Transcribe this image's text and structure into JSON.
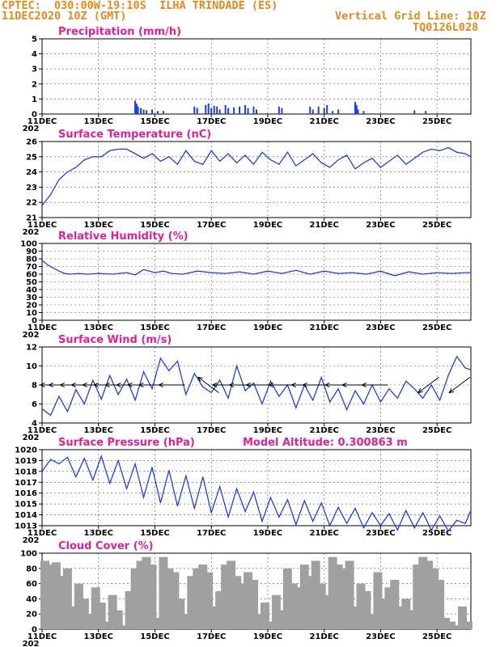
{
  "header": {
    "left_line1": "CPTEC:  030:00W-19:10S  ILHA TRINDADE (ES)",
    "left_line2": "11DEC2020 10Z (GMT)",
    "right_line1": "Vertical Grid Line: 10Z",
    "right_line2": "TQ0126L028"
  },
  "colors": {
    "header": "#e8881c",
    "title": "#e0209a",
    "line": "#1f3fe6",
    "bar": "#1f3fe6",
    "cloud": "#a0a0a0",
    "arrow": "#000000"
  },
  "x_axis": {
    "ticks": [
      "11DEC",
      "13DEC",
      "15DEC",
      "17DEC",
      "19DEC",
      "21DEC",
      "23DEC",
      "25DEC"
    ],
    "tick_positions_days": [
      0,
      2,
      4,
      6,
      8,
      10,
      12,
      14
    ],
    "range_days": [
      0,
      15.2
    ],
    "year_fragment": "202"
  },
  "chart_data": [
    {
      "type": "bar",
      "title": "Precipitation (mm/h)",
      "ylim": [
        0,
        5
      ],
      "yticks": [
        0,
        1,
        2,
        3,
        4,
        5
      ],
      "grid": true,
      "x": [
        3.3,
        3.35,
        3.4,
        3.5,
        3.6,
        3.7,
        3.9,
        4.1,
        4.3,
        5.4,
        5.5,
        5.8,
        5.9,
        6.0,
        6.1,
        6.2,
        6.3,
        6.5,
        6.6,
        6.8,
        7.0,
        7.2,
        7.3,
        7.5,
        7.6,
        8.4,
        8.5,
        9.5,
        9.6,
        9.8,
        10.0,
        10.1,
        10.3,
        10.5,
        11.1,
        11.15,
        11.2,
        11.4,
        13.2,
        13.6
      ],
      "values": [
        0.9,
        0.7,
        0.5,
        0.4,
        0.3,
        0.25,
        0.3,
        0.2,
        0.2,
        0.5,
        0.4,
        0.6,
        0.7,
        0.4,
        0.55,
        0.5,
        0.3,
        0.6,
        0.4,
        0.45,
        0.5,
        0.6,
        0.4,
        0.5,
        0.3,
        0.5,
        0.4,
        0.5,
        0.3,
        0.5,
        0.4,
        0.6,
        0.2,
        0.3,
        0.8,
        0.6,
        0.3,
        0.2,
        0.25,
        0.2
      ]
    },
    {
      "type": "line",
      "title": "Surface Temperature (nC)",
      "ylim": [
        21,
        26
      ],
      "yticks": [
        21,
        22,
        23,
        24,
        25,
        26
      ],
      "grid": true,
      "x": [
        0,
        0.3,
        0.6,
        0.9,
        1.2,
        1.5,
        1.8,
        2.1,
        2.4,
        2.7,
        3.0,
        3.3,
        3.6,
        3.9,
        4.2,
        4.5,
        4.8,
        5.1,
        5.4,
        5.7,
        6.0,
        6.3,
        6.6,
        6.9,
        7.2,
        7.5,
        7.8,
        8.1,
        8.4,
        8.7,
        9.0,
        9.3,
        9.6,
        9.9,
        10.2,
        10.5,
        10.8,
        11.1,
        11.4,
        11.7,
        12.0,
        12.3,
        12.6,
        12.9,
        13.2,
        13.5,
        13.8,
        14.1,
        14.4,
        14.7,
        15.0,
        15.2
      ],
      "values": [
        21.8,
        22.5,
        23.5,
        24.0,
        24.3,
        24.8,
        25.0,
        25.0,
        25.4,
        25.5,
        25.5,
        25.2,
        24.9,
        25.2,
        24.7,
        25.0,
        24.5,
        25.4,
        24.7,
        24.5,
        25.4,
        24.7,
        25.2,
        24.6,
        25.1,
        24.5,
        25.3,
        24.8,
        24.5,
        25.3,
        24.4,
        24.8,
        25.2,
        24.6,
        24.3,
        24.8,
        25.1,
        24.2,
        24.6,
        24.9,
        24.3,
        24.7,
        25.1,
        24.5,
        24.9,
        25.3,
        25.5,
        25.4,
        25.6,
        25.3,
        25.2,
        25.0
      ]
    },
    {
      "type": "line",
      "title": "Relative Humidity (%)",
      "ylim": [
        0,
        100
      ],
      "yticks": [
        0,
        10,
        20,
        30,
        40,
        50,
        60,
        70,
        80,
        90,
        100
      ],
      "grid": true,
      "x": [
        0,
        0.2,
        0.4,
        0.6,
        0.8,
        1.0,
        1.3,
        1.6,
        2.0,
        2.5,
        3.0,
        3.3,
        3.6,
        4.0,
        4.3,
        4.6,
        5.0,
        5.5,
        6.0,
        6.5,
        7.0,
        7.5,
        8.0,
        8.5,
        9.0,
        9.5,
        10.0,
        10.5,
        11.0,
        11.5,
        12.0,
        12.5,
        13.0,
        13.5,
        14.0,
        14.5,
        15.0,
        15.2
      ],
      "values": [
        78,
        72,
        68,
        64,
        61,
        60,
        61,
        60,
        61,
        60,
        62,
        59,
        66,
        62,
        64,
        61,
        60,
        64,
        62,
        61,
        63,
        60,
        64,
        61,
        65,
        60,
        64,
        61,
        62,
        60,
        64,
        58,
        63,
        60,
        62,
        61,
        62,
        62
      ]
    },
    {
      "type": "line",
      "title": "Surface Wind (m/s)",
      "ylim": [
        4,
        12
      ],
      "yticks": [
        4,
        6,
        8,
        10,
        12
      ],
      "grid": true,
      "x": [
        0,
        0.3,
        0.6,
        0.9,
        1.2,
        1.5,
        1.8,
        2.1,
        2.4,
        2.7,
        3.0,
        3.3,
        3.6,
        3.9,
        4.2,
        4.5,
        4.8,
        5.1,
        5.4,
        5.7,
        6.0,
        6.3,
        6.6,
        6.9,
        7.2,
        7.5,
        7.8,
        8.1,
        8.4,
        8.7,
        9.0,
        9.3,
        9.6,
        9.9,
        10.2,
        10.5,
        10.8,
        11.1,
        11.4,
        11.7,
        12.0,
        12.3,
        12.6,
        12.9,
        13.2,
        13.5,
        13.8,
        14.1,
        14.4,
        14.7,
        15.0,
        15.2
      ],
      "values": [
        5.5,
        4.8,
        6.8,
        5.2,
        7.5,
        6.0,
        8.5,
        6.5,
        9.0,
        7.0,
        8.6,
        6.4,
        9.4,
        7.6,
        10.8,
        9.5,
        10.5,
        7.0,
        9.2,
        7.8,
        7.2,
        8.5,
        6.6,
        10.0,
        7.4,
        8.2,
        6.0,
        8.4,
        6.8,
        8.0,
        5.6,
        8.0,
        6.4,
        8.8,
        6.2,
        7.6,
        5.4,
        7.4,
        6.0,
        8.0,
        6.2,
        7.6,
        6.6,
        8.4,
        7.6,
        6.6,
        8.0,
        6.4,
        9.0,
        11.0,
        9.8,
        9.6
      ],
      "arrows_dir": [
        "w",
        "w",
        "w",
        "w",
        "w",
        "w",
        "w",
        "w",
        "w",
        "w",
        "w",
        "nw",
        "w",
        "w",
        "w",
        "w",
        "w",
        "w",
        "w",
        "w",
        "w",
        "sw",
        "sw"
      ],
      "arrows_x": [
        0.4,
        0.7,
        1.1,
        1.5,
        1.9,
        2.3,
        2.7,
        3.1,
        3.5,
        3.9,
        4.6,
        5.9,
        6.5,
        7.1,
        7.7,
        8.5,
        9.3,
        9.7,
        10.5,
        11.1,
        11.8,
        13.7,
        14.8
      ]
    },
    {
      "type": "line",
      "title": "Surface Pressure (hPa)",
      "annotation": "Model Altitude: 0.300863 m",
      "ylim": [
        1013,
        1020
      ],
      "yticks": [
        1013,
        1014,
        1015,
        1016,
        1017,
        1018,
        1019,
        1020
      ],
      "grid": true,
      "x": [
        0,
        0.3,
        0.6,
        0.9,
        1.2,
        1.5,
        1.8,
        2.1,
        2.4,
        2.7,
        3.0,
        3.3,
        3.6,
        3.9,
        4.2,
        4.5,
        4.8,
        5.1,
        5.4,
        5.7,
        6.0,
        6.3,
        6.6,
        6.9,
        7.2,
        7.5,
        7.8,
        8.1,
        8.4,
        8.7,
        9.0,
        9.3,
        9.6,
        9.9,
        10.2,
        10.5,
        10.8,
        11.1,
        11.4,
        11.7,
        12.0,
        12.3,
        12.6,
        12.9,
        13.2,
        13.5,
        13.8,
        14.1,
        14.4,
        14.7,
        15.0,
        15.2
      ],
      "values": [
        1018.0,
        1019.1,
        1018.7,
        1019.3,
        1017.5,
        1019.2,
        1017.2,
        1019.4,
        1016.9,
        1019.0,
        1016.4,
        1018.7,
        1015.6,
        1018.4,
        1015.1,
        1018.1,
        1014.8,
        1017.6,
        1014.6,
        1017.5,
        1014.2,
        1016.6,
        1013.8,
        1016.4,
        1014.3,
        1016.1,
        1013.4,
        1015.6,
        1013.8,
        1015.4,
        1013.1,
        1015.3,
        1013.4,
        1015.1,
        1013.0,
        1014.7,
        1013.2,
        1014.6,
        1012.8,
        1014.2,
        1013.0,
        1014.1,
        1012.6,
        1014.4,
        1012.8,
        1014.2,
        1012.6,
        1013.9,
        1012.5,
        1013.5,
        1013.2,
        1014.4
      ]
    },
    {
      "type": "bar",
      "title": "Cloud Cover (%)",
      "ylim": [
        0,
        100
      ],
      "yticks": [
        0,
        20,
        40,
        60,
        80,
        100
      ],
      "grid": true,
      "x": [
        0.1,
        0.3,
        0.5,
        0.7,
        0.9,
        1.1,
        1.3,
        1.5,
        1.7,
        1.9,
        2.1,
        2.3,
        2.5,
        2.7,
        2.9,
        3.1,
        3.3,
        3.5,
        3.7,
        3.9,
        4.1,
        4.3,
        4.5,
        4.7,
        4.9,
        5.1,
        5.3,
        5.5,
        5.7,
        5.9,
        6.1,
        6.3,
        6.5,
        6.7,
        6.9,
        7.1,
        7.3,
        7.5,
        7.7,
        7.9,
        8.1,
        8.3,
        8.5,
        8.7,
        8.9,
        9.1,
        9.3,
        9.5,
        9.7,
        9.9,
        10.1,
        10.3,
        10.5,
        10.7,
        10.9,
        11.1,
        11.3,
        11.5,
        11.7,
        11.9,
        12.1,
        12.3,
        12.5,
        12.7,
        12.9,
        13.1,
        13.3,
        13.5,
        13.7,
        13.9,
        14.1,
        14.3,
        14.5,
        14.7,
        14.9,
        15.1
      ],
      "values": [
        90,
        85,
        88,
        70,
        80,
        30,
        60,
        40,
        20,
        55,
        35,
        10,
        45,
        25,
        5,
        50,
        80,
        90,
        95,
        85,
        15,
        95,
        80,
        75,
        40,
        20,
        70,
        80,
        85,
        75,
        30,
        50,
        85,
        90,
        70,
        60,
        75,
        65,
        20,
        35,
        10,
        45,
        25,
        80,
        60,
        55,
        85,
        70,
        90,
        60,
        45,
        95,
        85,
        80,
        90,
        30,
        60,
        50,
        20,
        75,
        40,
        55,
        65,
        30,
        40,
        25,
        85,
        95,
        90,
        80,
        65,
        15,
        10,
        5,
        30,
        10
      ]
    }
  ]
}
